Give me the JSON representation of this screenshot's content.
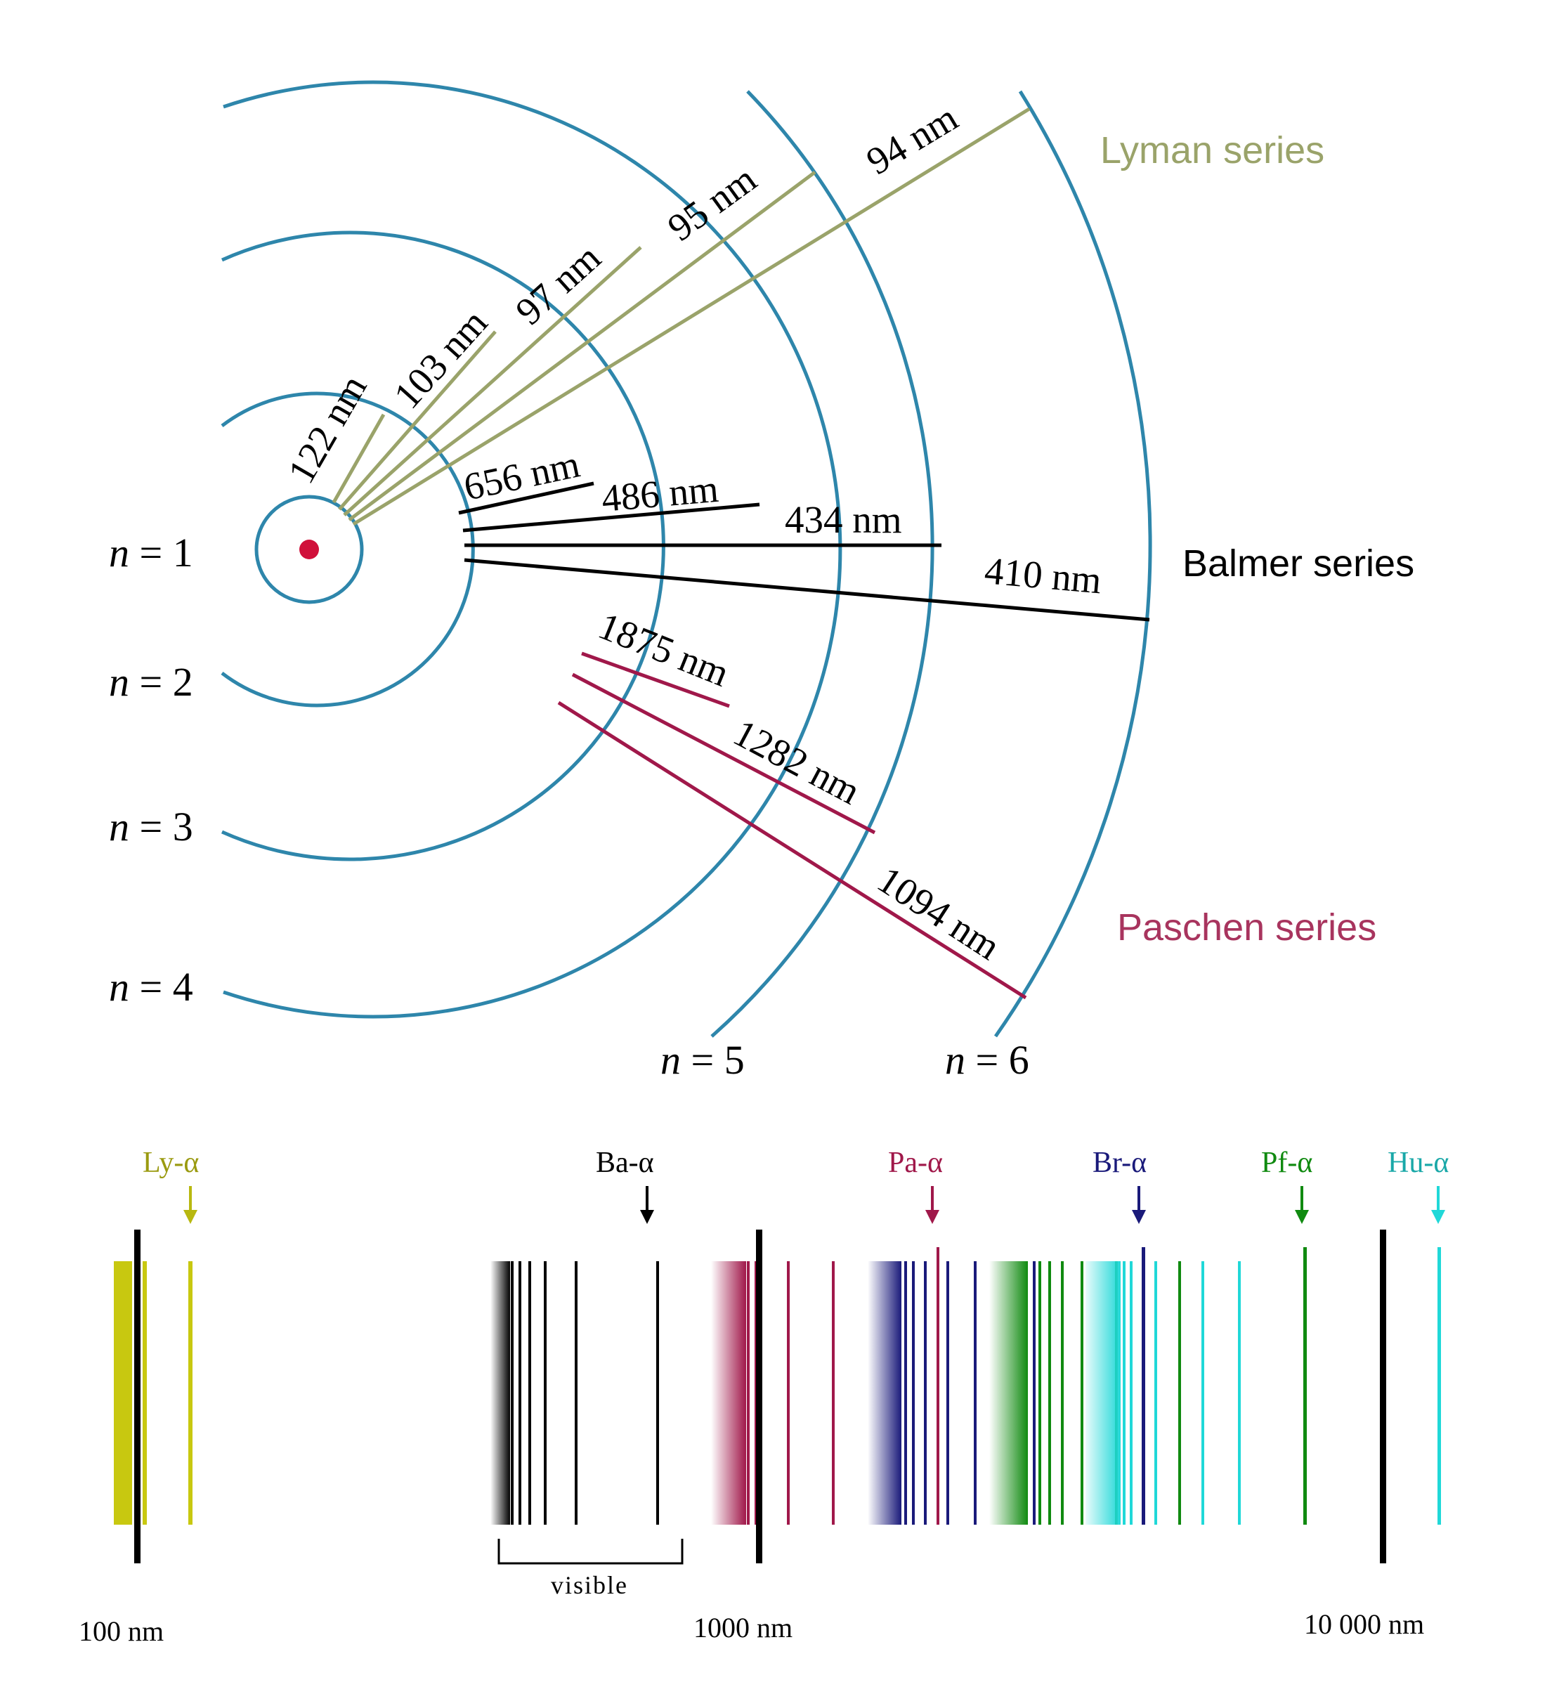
{
  "series": {
    "lyman": {
      "label": "Lyman series",
      "color": "#9aa36a"
    },
    "balmer": {
      "label": "Balmer series",
      "color": "#000000"
    },
    "paschen": {
      "label": "Paschen series",
      "color": "#a0184a"
    }
  },
  "levels": [
    {
      "n": "n",
      "eq": " = 1"
    },
    {
      "n": "n",
      "eq": " = 2"
    },
    {
      "n": "n",
      "eq": " = 3"
    },
    {
      "n": "n",
      "eq": " = 4"
    },
    {
      "n": "n",
      "eq": " = 5"
    },
    {
      "n": "n",
      "eq": " = 6"
    }
  ],
  "transitions": {
    "lyman": [
      "122 nm",
      "103 nm",
      "97 nm",
      "95 nm",
      "94 nm"
    ],
    "balmer": [
      "656 nm",
      "486 nm",
      "434 nm",
      "410 nm"
    ],
    "paschen": [
      "1875 nm",
      "1282 nm",
      "1094 nm"
    ]
  },
  "spectrum": {
    "markers": [
      {
        "label": "Ly-α",
        "color": "#9a9a10"
      },
      {
        "label": "Ba-α",
        "color": "#000000"
      },
      {
        "label": "Pa-α",
        "color": "#a0184a"
      },
      {
        "label": "Br-α",
        "color": "#1a1a7a"
      },
      {
        "label": "Pf-α",
        "color": "#108a10"
      },
      {
        "label": "Hu-α",
        "color": "#1aa8a8"
      }
    ],
    "visible_label": "visible",
    "scale_labels": [
      "100 nm",
      "1000 nm",
      "10 000 nm"
    ]
  },
  "colors": {
    "orbit": "#2e86ab",
    "nucleus": "#d0103a",
    "lyman_lines": "#c8c810",
    "balmer_lines": "#000000",
    "paschen_lines": "#a0184a",
    "brackett_lines": "#1a1a7a",
    "pfund_lines": "#108a10",
    "humphreys_lines": "#20d8d8"
  }
}
